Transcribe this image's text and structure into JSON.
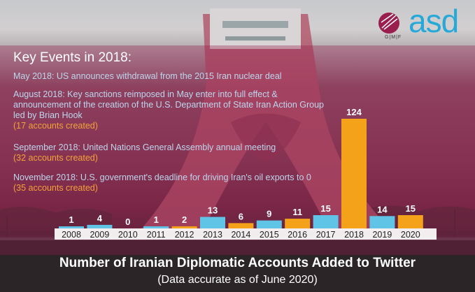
{
  "brand": {
    "name": "asd",
    "sub": "G|M|F"
  },
  "events_title": "Key Events in 2018:",
  "events": [
    {
      "desc": "May 2018: US announces withdrawal from the 2015 Iran nuclear deal",
      "note": ""
    },
    {
      "desc": "August 2018: Key sanctions reimposed in May enter into full effect & announcement of the creation of the U.S. Department of State Iran Action Group led by Brian Hook",
      "note": "(17 accounts created)"
    },
    {
      "desc": "September 2018: United Nations General Assembly annual meeting",
      "note": "(32 accounts created)"
    },
    {
      "desc": "November 2018: U.S. government's deadline for driving Iran's oil exports to 0",
      "note": "(35 accounts created)"
    }
  ],
  "chart_data": {
    "type": "bar",
    "title": "Number of Iranian Diplomatic Accounts Added to Twitter",
    "subtitle": "(Data accurate as of June 2020)",
    "categories": [
      "2008",
      "2009",
      "2010",
      "2011",
      "2012",
      "2013",
      "2014",
      "2015",
      "2016",
      "2017",
      "2018",
      "2019",
      "2020"
    ],
    "values": [
      1,
      4,
      0,
      1,
      2,
      13,
      6,
      9,
      11,
      15,
      124,
      14,
      15
    ],
    "bar_colors": [
      "#5fc4e6",
      "#5fc4e6",
      "#5fc4e6",
      "#5fc4e6",
      "#f5a21b",
      "#5fc4e6",
      "#f5a21b",
      "#5fc4e6",
      "#f5a21b",
      "#5fc4e6",
      "#f5a21b",
      "#5fc4e6",
      "#f5a21b"
    ],
    "ylim": [
      0,
      124
    ],
    "grid": false,
    "xlabel": "",
    "ylabel": ""
  }
}
